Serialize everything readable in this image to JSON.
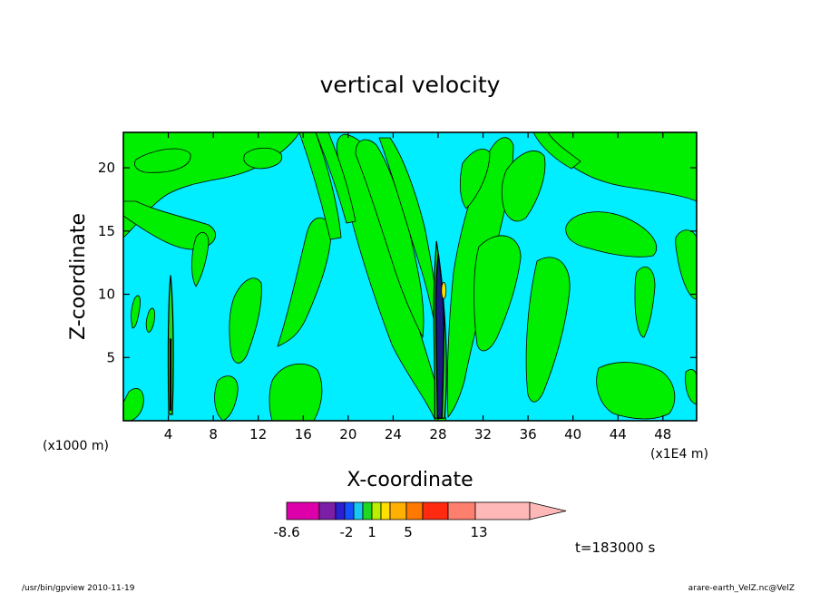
{
  "chart_data": {
    "type": "heatmap",
    "title": "vertical velocity",
    "xlabel": "X-coordinate",
    "ylabel": "Z-coordinate",
    "x_unit_left": "(x1000 m)",
    "x_unit_right": "(x1E4 m)",
    "x_ticks": [
      "4",
      "8",
      "12",
      "16",
      "20",
      "24",
      "28",
      "32",
      "36",
      "40",
      "44",
      "48"
    ],
    "y_ticks": [
      "5",
      "10",
      "15",
      "20"
    ],
    "x_tick_values": [
      4,
      8,
      12,
      16,
      20,
      24,
      28,
      32,
      36,
      40,
      44,
      48
    ],
    "y_tick_values": [
      5,
      10,
      15,
      20
    ],
    "xlim": [
      0,
      51
    ],
    "ylim": [
      0,
      22.8
    ],
    "time_label": "t=183000 s",
    "colorbar": {
      "labels": [
        "-8.6",
        "-2",
        "1",
        "5",
        "13"
      ],
      "colors": [
        "#dd00aa",
        "#7a1fa6",
        "#2b1fd6",
        "#1450ff",
        "#18c8f0",
        "#20d820",
        "#b8f000",
        "#ffe000",
        "#ffb000",
        "#ff7800",
        "#ff2a10",
        "#ff7f6e",
        "#ffb8b8"
      ],
      "background_colors": {
        "negative": "#00eeff",
        "positive": "#00ee00"
      }
    },
    "features": [
      {
        "kind": "updraft_core",
        "x": 28.1,
        "z_range": [
          0.2,
          14.2
        ],
        "max_color": "#ffe000"
      },
      {
        "kind": "weak_column",
        "x": 4.2,
        "z_range": [
          0.5,
          11.5
        ]
      }
    ]
  },
  "footer": {
    "left": "/usr/bin/gpview   2010-11-19",
    "right": "arare-earth_VelZ.nc@VelZ"
  }
}
